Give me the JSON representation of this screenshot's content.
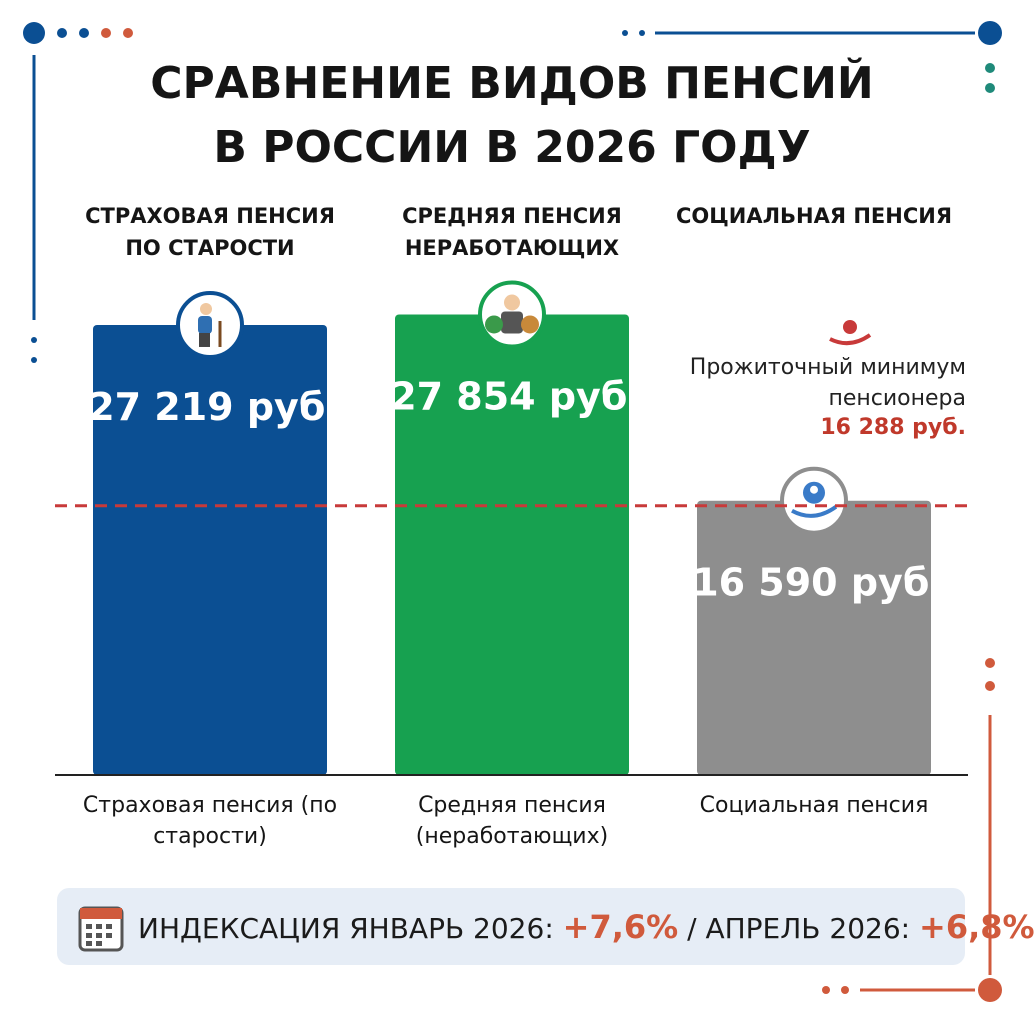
{
  "chart_data": {
    "type": "bar",
    "title": "СРАВНЕНИЕ ВИДОВ ПЕНСИЙ В РОССИИ В 2026 ГОДУ",
    "headers": [
      "СТРАХОВАЯ ПЕНСИЯ ПО СТАРОСТИ",
      "СРЕДНЯЯ ПЕНСИЯ НЕРАБОТАЮЩИХ",
      "СОЦИАЛЬНАЯ ПЕНСИЯ"
    ],
    "categories": [
      "Страховая пенсия (по старости)",
      "Средняя пенсия (неработающих)",
      "Социальная пенсия"
    ],
    "values": [
      27219,
      27854,
      16590
    ],
    "value_labels": [
      "27 219 руб.",
      "27 854 руб.",
      "16 590 руб."
    ],
    "colors": [
      "#0b4f93",
      "#17a150",
      "#8e8e8e"
    ],
    "ylim": [
      0,
      30000
    ],
    "reference_line": {
      "value": 16288,
      "label": "Прожиточный минимум пенсионера",
      "value_label": "16 288 руб.",
      "color": "#c83a3a"
    },
    "footer": {
      "january_label": "ИНДЕКСАЦИЯ ЯНВАРЬ 2026:",
      "january_value": "+7,6%",
      "april_label": "/ АПРЕЛЬ 2026:",
      "april_value": "+6,8%"
    }
  }
}
